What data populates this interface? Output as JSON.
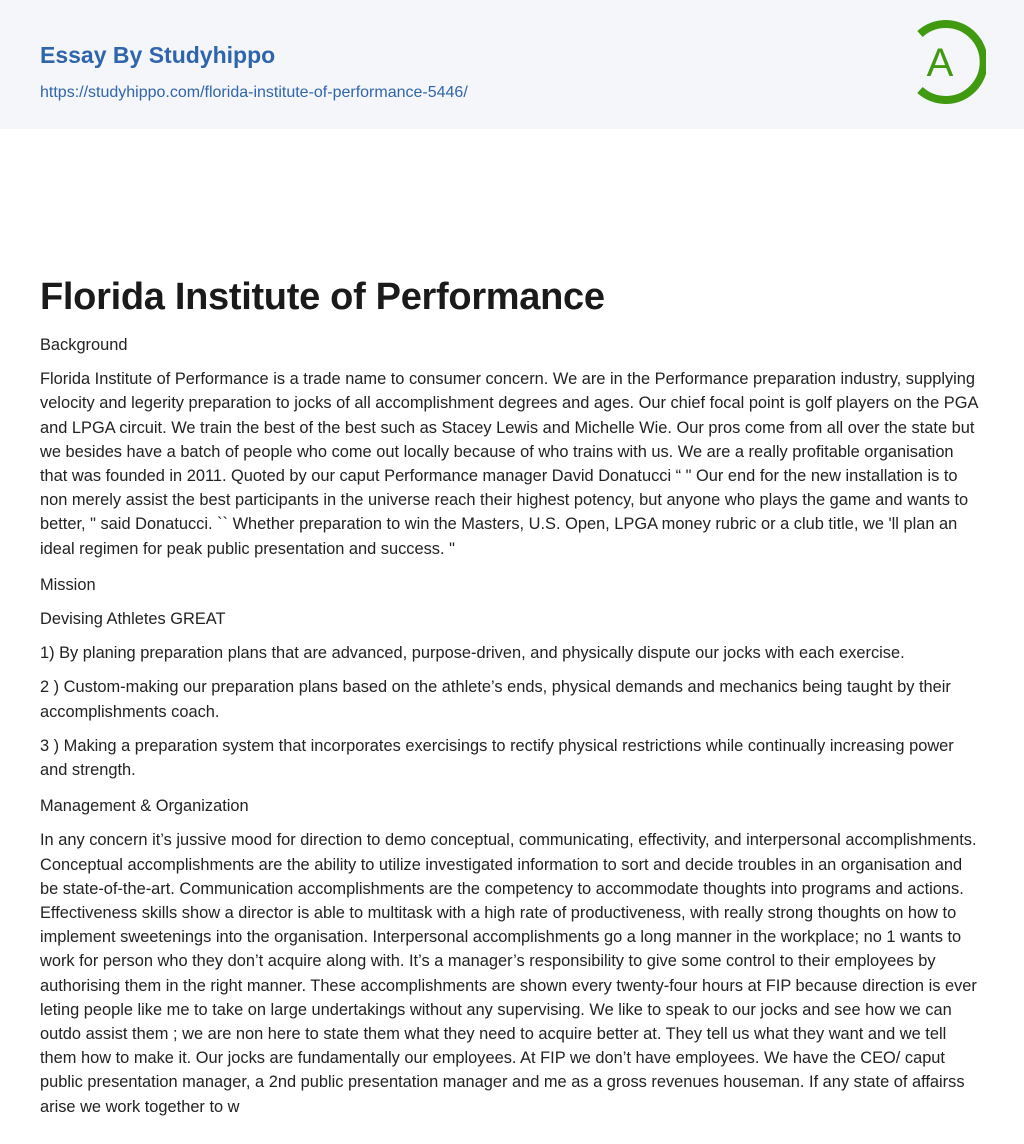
{
  "header": {
    "brand": "Essay By Studyhippo",
    "url": "https://studyhippo.com/florida-institute-of-performance-5446/",
    "logo_letter": "A",
    "colors": {
      "brand": "#2f65ac",
      "logo": "#3f9a10"
    }
  },
  "document": {
    "title": "Florida Institute of Performance",
    "blocks": [
      "Background",
      "Florida Institute of Performance is a trade name to consumer concern. We are in the Performance preparation industry, supplying velocity and legerity preparation to jocks of all accomplishment degrees and ages. Our chief focal point is golf players on the PGA and LPGA circuit. We train the best of the best such as Stacey Lewis and Michelle Wie. Our pros come from all over the state but we besides have a batch of people who come out locally because of who trains with us. We are a really profitable organisation that was founded in 2011. Quoted by our caput Performance manager David Donatucci “ \" Our end for the new installation is to non merely assist the best participants in the universe reach their highest potency, but anyone who plays the game and wants to better, \" said Donatucci. `` Whether preparation to win the Masters, U.S. Open, LPGA money rubric or a club title, we 'll plan an ideal regimen for peak public presentation and success. \"",
      "Mission",
      "Devising Athletes GREAT",
      "1) By planing preparation plans that are advanced, purpose-driven, and physically dispute our jocks with each exercise.",
      "2 ) Custom-making our preparation plans based on the athlete’s ends, physical demands and mechanics being taught by their accomplishments coach.",
      "3 ) Making a preparation system that incorporates exercisings to rectify physical restrictions while continually increasing power and strength.",
      "Management & Organization",
      "In any concern it’s jussive mood for direction to demo conceptual, communicating, effectivity, and interpersonal accomplishments. Conceptual accomplishments are the ability to utilize investigated information to sort and decide troubles in an organisation and be state-of-the-art. Communication accomplishments are the competency to accommodate thoughts into programs and actions. Effectiveness skills show a director is able to multitask with a high rate of productiveness, with really strong thoughts on how to implement sweetenings into the organisation. Interpersonal accomplishments go a long manner in the workplace; no 1 wants to work for person who they don’t acquire along with. It’s a manager’s responsibility to give some control to their employees by authorising them in the right manner. These accomplishments are shown every twenty-four hours at FIP because direction is ever leting people like me to take on large undertakings without any supervising. We like to speak to our jocks and see how we can outdo assist them ; we are non here to state them what they need to acquire better at. They tell us what they want and we tell them how to make it. Our jocks are fundamentally our employees. At FIP we don’t have employees. We have the CEO/ caput public presentation manager, a 2nd public presentation manager and me as a gross revenues houseman. If any state of affairss arise we work together to w"
    ]
  }
}
